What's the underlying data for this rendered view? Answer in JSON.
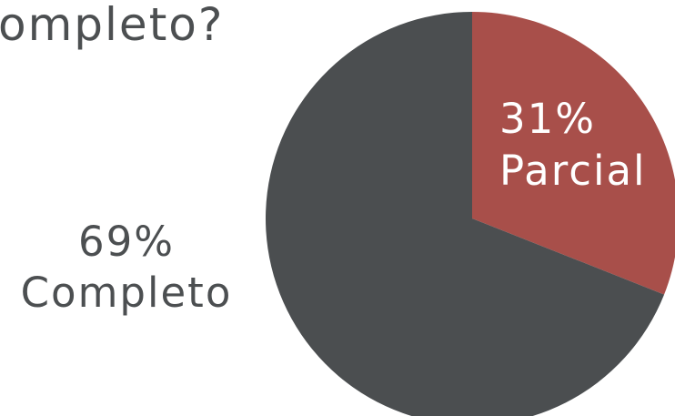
{
  "chart_data": {
    "type": "pie",
    "title": "ompleto?",
    "slices": [
      {
        "label": "Parcial",
        "value": 31,
        "value_label": "31%",
        "color": "#a84f4a"
      },
      {
        "label": "Completo",
        "value": 69,
        "value_label": "69%",
        "color": "#4b4e50"
      }
    ]
  }
}
